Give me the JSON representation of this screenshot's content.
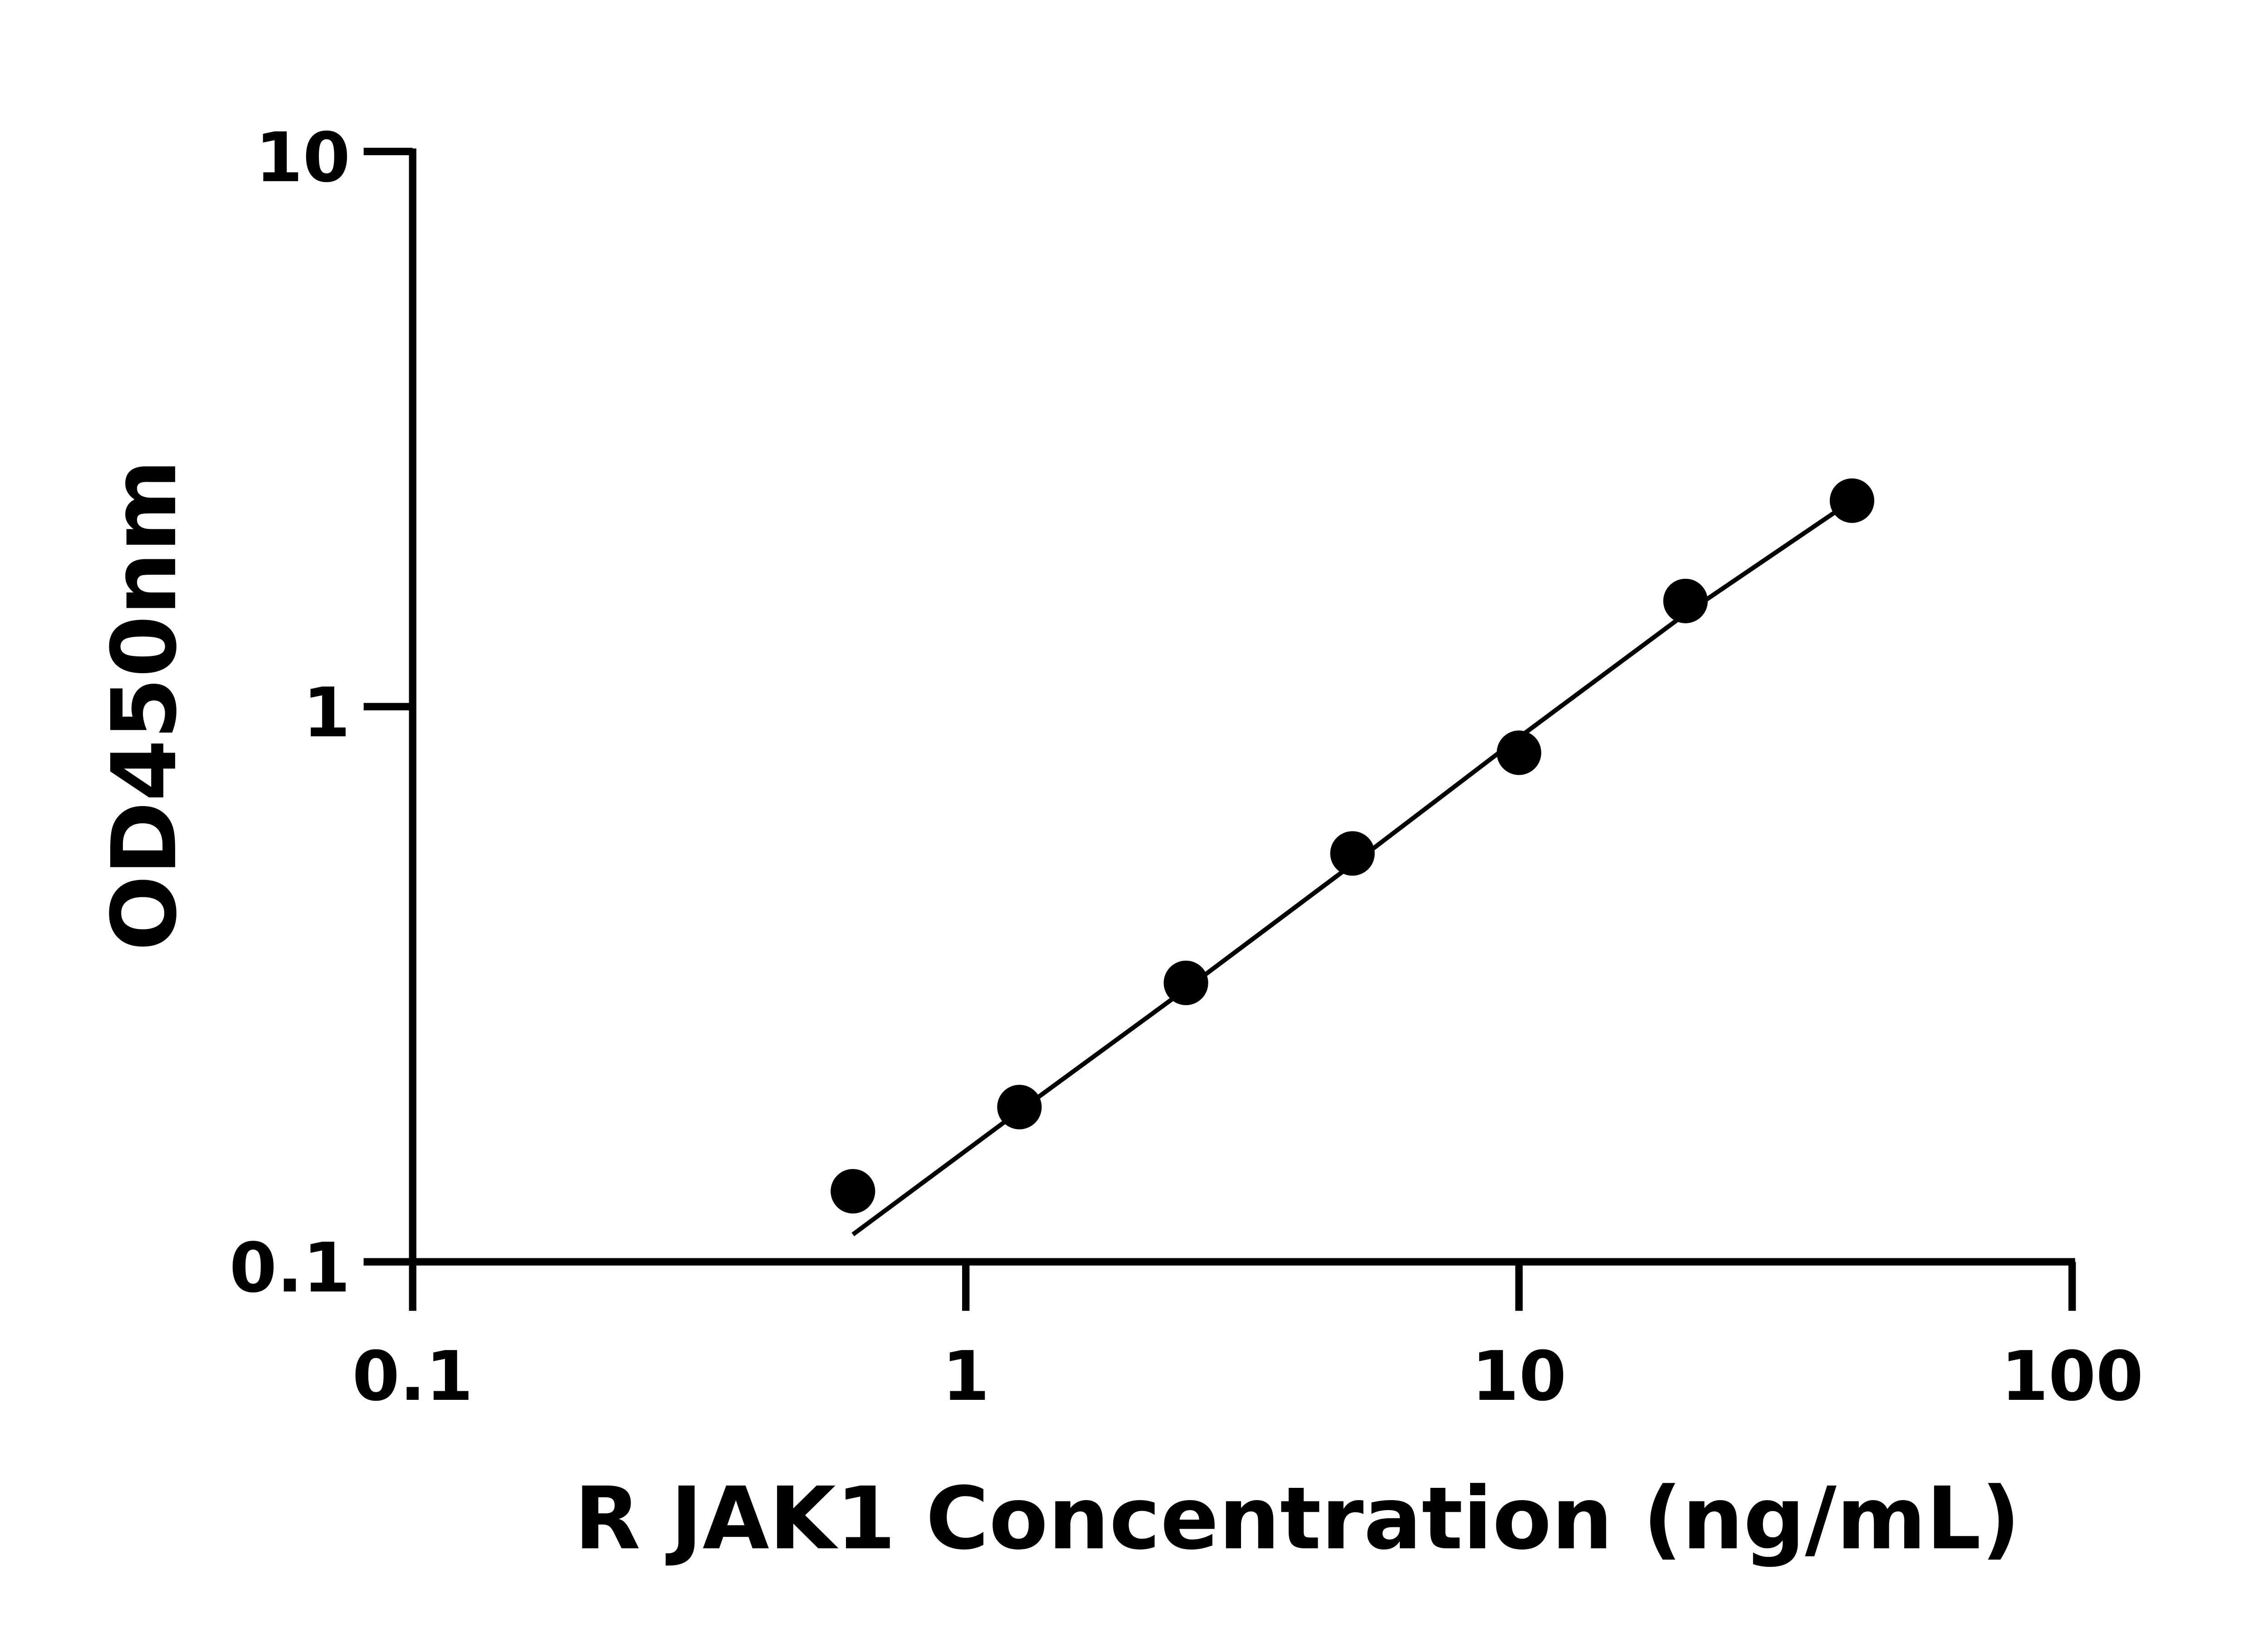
{
  "chart_data": {
    "type": "scatter",
    "title": "",
    "xlabel": "R JAK1 Concentration (ng/mL)",
    "ylabel": "OD450nm",
    "x_scale": "log",
    "y_scale": "log",
    "xlim": [
      0.1,
      100
    ],
    "ylim": [
      0.1,
      10
    ],
    "x_ticks": [
      0.1,
      1,
      10,
      100
    ],
    "x_tick_labels": [
      "0.1",
      "1",
      "10",
      "100"
    ],
    "y_ticks": [
      0.1,
      1,
      10
    ],
    "y_tick_labels": [
      "0.1",
      "1",
      "10"
    ],
    "grid": false,
    "colors": {
      "points": "#000000",
      "curve": "#000000"
    },
    "points": {
      "x": [
        0.625,
        1.25,
        2.5,
        5,
        10,
        20,
        40
      ],
      "y": [
        0.134,
        0.19,
        0.318,
        0.544,
        0.826,
        1.55,
        2.35
      ]
    },
    "fit_curve": {
      "x": [
        0.625,
        1.25,
        2.5,
        5,
        10,
        20,
        40
      ],
      "y": [
        0.112,
        0.187,
        0.31,
        0.52,
        0.88,
        1.47,
        2.35
      ]
    }
  }
}
